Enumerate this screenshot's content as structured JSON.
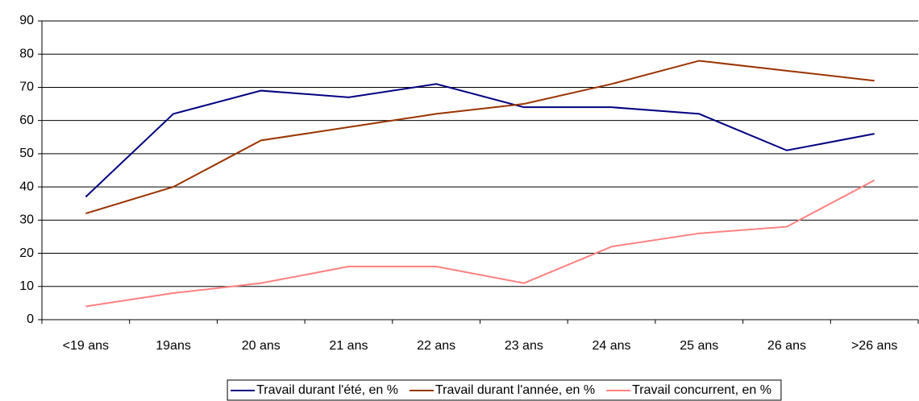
{
  "chart_data": {
    "type": "line",
    "categories": [
      "<19 ans",
      "19ans",
      "20 ans",
      "21 ans",
      "22 ans",
      "23 ans",
      "24 ans",
      "25 ans",
      "26 ans",
      ">26 ans"
    ],
    "series": [
      {
        "name": "Travail durant l'été, en %",
        "color": "#000080",
        "values": [
          37,
          62,
          69,
          67,
          71,
          64,
          64,
          62,
          51,
          56
        ]
      },
      {
        "name": "Travail durant l'année, en %",
        "color": "#993300",
        "values": [
          32,
          40,
          54,
          58,
          62,
          65,
          71,
          78,
          75,
          72
        ]
      },
      {
        "name": "Travail concurrent, en %",
        "color": "#ff8080",
        "values": [
          4,
          8,
          11,
          16,
          16,
          11,
          22,
          26,
          28,
          42
        ]
      }
    ],
    "ylim": [
      0,
      90
    ],
    "yticks": [
      0,
      10,
      20,
      30,
      40,
      50,
      60,
      70,
      80,
      90
    ],
    "grid": true,
    "legend": "bottom"
  }
}
